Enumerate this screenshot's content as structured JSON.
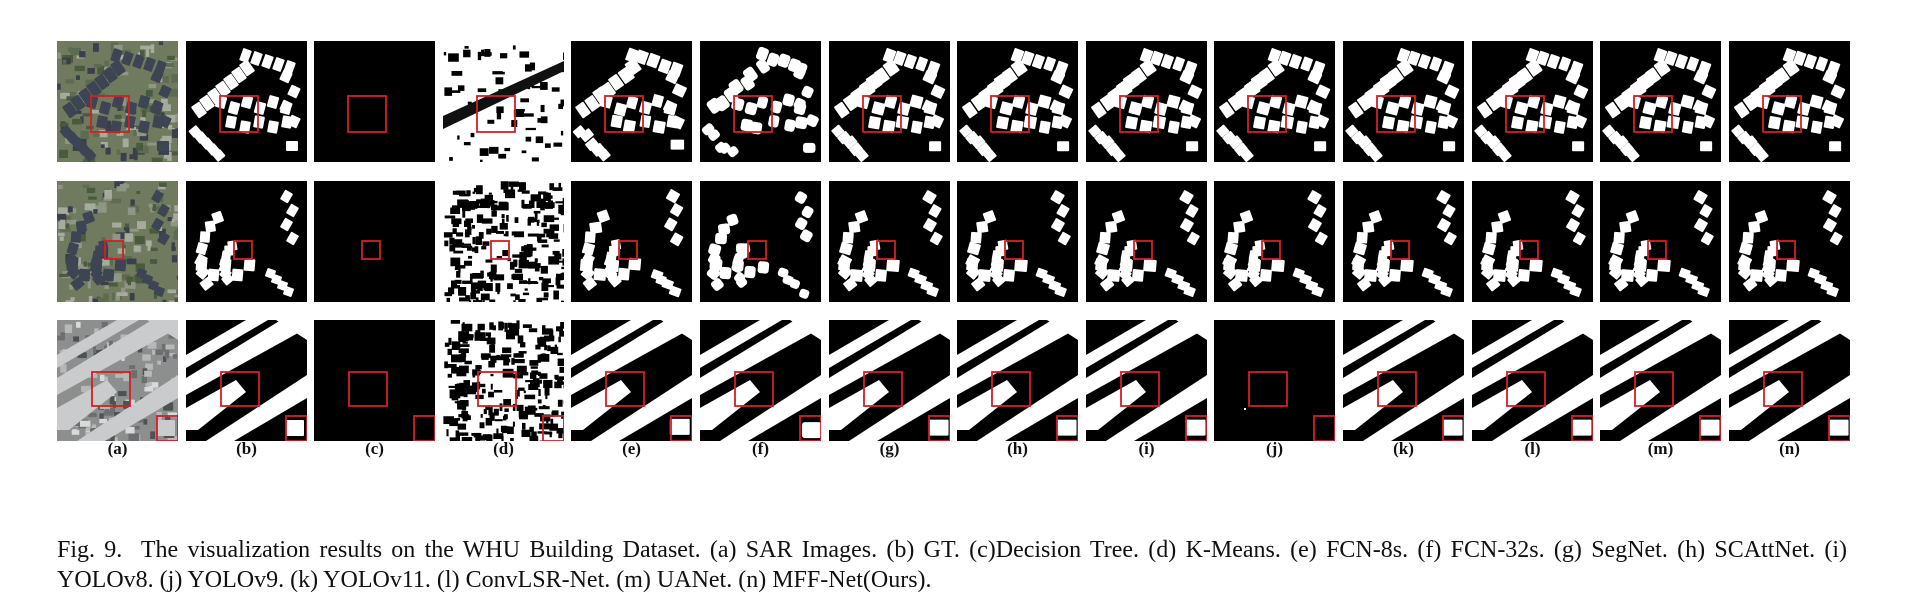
{
  "figure": {
    "columns": [
      {
        "id": "a",
        "label": "(a)",
        "kind": "sar"
      },
      {
        "id": "b",
        "label": "(b)",
        "kind": "gt"
      },
      {
        "id": "c",
        "label": "(c)",
        "kind": "blank"
      },
      {
        "id": "d",
        "label": "(d)",
        "kind": "kmeans"
      },
      {
        "id": "e",
        "label": "(e)",
        "kind": "fcn8"
      },
      {
        "id": "f",
        "label": "(f)",
        "kind": "fcn32"
      },
      {
        "id": "g",
        "label": "(g)",
        "kind": "pred"
      },
      {
        "id": "h",
        "label": "(h)",
        "kind": "pred"
      },
      {
        "id": "i",
        "label": "(i)",
        "kind": "pred"
      },
      {
        "id": "j",
        "label": "(j)",
        "kind": "pred_j"
      },
      {
        "id": "k",
        "label": "(k)",
        "kind": "pred"
      },
      {
        "id": "l",
        "label": "(l)",
        "kind": "pred"
      },
      {
        "id": "m",
        "label": "(m)",
        "kind": "pred"
      },
      {
        "id": "n",
        "label": "(n)",
        "kind": "pred"
      }
    ],
    "rows": [
      {
        "id": "row-1",
        "scene": "residential-grid"
      },
      {
        "id": "row-2",
        "scene": "residential-curve"
      },
      {
        "id": "row-3",
        "scene": "industrial"
      }
    ],
    "highlight_color": "#d21f26"
  },
  "caption": {
    "label": "Fig. 9.",
    "text": "The visualization results on the WHU Building Dataset. (a) SAR Images. (b) GT. (c)Decision Tree. (d) K-Means. (e) FCN-8s. (f) FCN-32s. (g) SegNet. (h) SCAttNet. (i) YOLOv8. (j) YOLOv9. (k) YOLOv11. (l) ConvLSR-Net. (m) UANet. (n) MFF-Net(Ours)."
  }
}
